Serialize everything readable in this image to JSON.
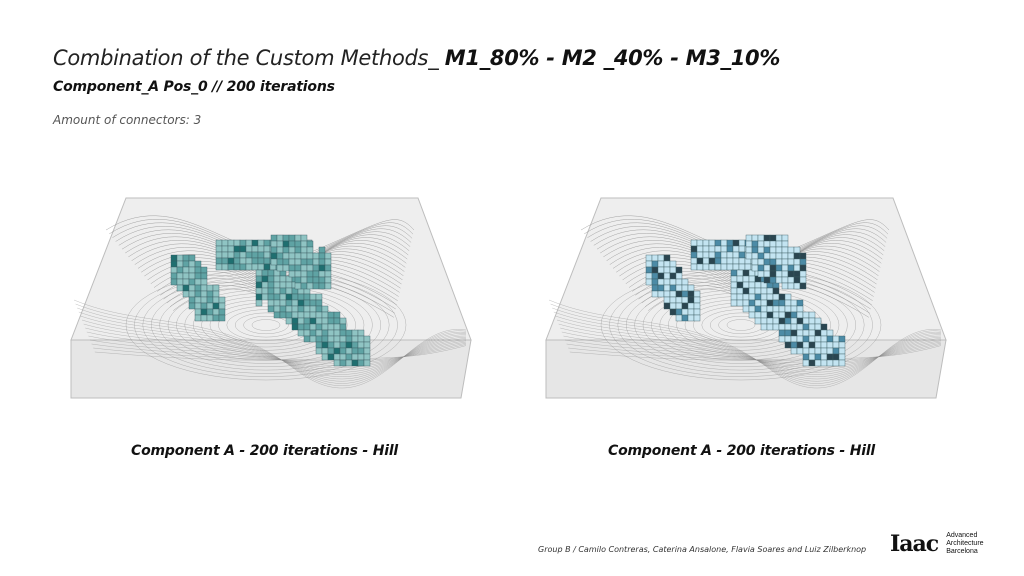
{
  "header": {
    "title_part1": "Combination of the Custom Methods_ ",
    "title_part2": "M1_80% -  M2 _40% - M3_10%",
    "subtitle": "Component_A  Pos_0 // 200 iterations",
    "note": "Amount of connectors: 3"
  },
  "panels": [
    {
      "caption": "Component A - 200 iterations - Hill",
      "palette": "teal"
    },
    {
      "caption": "Component A - 200 iterations - Hill",
      "palette": "light-blue-dark-blue"
    }
  ],
  "colors": {
    "teal_light": "#8fc4c3",
    "teal_mid": "#5fa3a4",
    "teal_dark": "#1f6f70",
    "blue_light": "#c3e4f1",
    "blue_mid": "#4c8ba6",
    "blue_dark": "#2a4550",
    "contour": "#8a8a8a",
    "box": "#bdbdbd"
  },
  "footer": {
    "credits": "Group B / Camilo Contreras, Caterina Ansalone, Flavia Soares and Luiz Zilberknop",
    "logo_mark": "Iaac",
    "logo_lines": [
      "Advanced",
      "Architecture",
      "Barcelona"
    ]
  }
}
